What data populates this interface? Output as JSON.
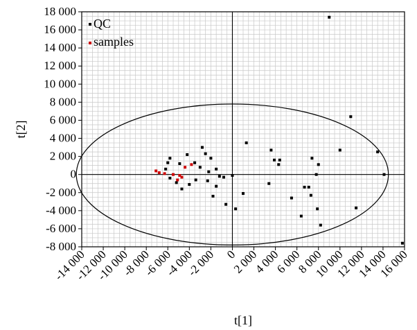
{
  "chart_data": {
    "type": "scatter",
    "title": "",
    "xlabel": "t[1]",
    "ylabel": "t[2]",
    "xlim": [
      -14000,
      16000
    ],
    "ylim": [
      -8000,
      18000
    ],
    "x_tick_values": [
      -14000,
      -12000,
      -10000,
      -8000,
      -6000,
      -4000,
      -2000,
      0,
      2000,
      4000,
      6000,
      8000,
      10000,
      12000,
      14000,
      16000
    ],
    "x_tick_labels": [
      "-14 000",
      "-12 000",
      "-10 000",
      "-8 000",
      "-6 000",
      "-4 000",
      "-2 000",
      "0",
      "2 000",
      "4 000",
      "6 000",
      "8 000",
      "10 000",
      "12 000",
      "14 000",
      "16 000"
    ],
    "y_tick_values": [
      -8000,
      -6000,
      -4000,
      -2000,
      0,
      2000,
      4000,
      6000,
      8000,
      10000,
      12000,
      14000,
      16000,
      18000
    ],
    "y_tick_labels": [
      "-8 000",
      "-6 000",
      "-4 000",
      "-2 000",
      "0",
      "2 000",
      "4 000",
      "6 000",
      "8 000",
      "10 000",
      "12 000",
      "14 000",
      "16 000",
      "18 000"
    ],
    "grid": true,
    "legend_position": "top-left",
    "ellipse": {
      "center_x": 0,
      "center_y": 0,
      "radius_x": 14500,
      "radius_y": 7800
    },
    "colors": {
      "QC": "#000000",
      "samples": "#cc0000",
      "grid": "#c8c8c8",
      "axis": "#000000",
      "background": "#ffffff"
    },
    "series": [
      {
        "name": "QC",
        "points": [
          [
            9000,
            17400
          ],
          [
            11000,
            6400
          ],
          [
            13500,
            2500
          ],
          [
            10000,
            2700
          ],
          [
            14100,
            0
          ],
          [
            11500,
            -3700
          ],
          [
            15800,
            -7600
          ],
          [
            -6000,
            1300
          ],
          [
            -5800,
            1800
          ],
          [
            -4900,
            1200
          ],
          [
            -4200,
            2200
          ],
          [
            -2800,
            3000
          ],
          [
            -2500,
            2300
          ],
          [
            -2000,
            1800
          ],
          [
            -1500,
            600
          ],
          [
            -3000,
            800
          ],
          [
            -2200,
            300
          ],
          [
            -1200,
            -200
          ],
          [
            -1500,
            -1300
          ],
          [
            -800,
            -300
          ],
          [
            0,
            -100
          ],
          [
            -600,
            -3300
          ],
          [
            -1800,
            -2400
          ],
          [
            -2300,
            -700
          ],
          [
            -3400,
            -600
          ],
          [
            -4000,
            -1100
          ],
          [
            -4700,
            -1600
          ],
          [
            -5200,
            -900
          ],
          [
            -5800,
            -400
          ],
          [
            -6200,
            600
          ],
          [
            -3500,
            1300
          ],
          [
            300,
            -3800
          ],
          [
            1000,
            -2100
          ],
          [
            1300,
            3500
          ],
          [
            3600,
            2700
          ],
          [
            3900,
            1600
          ],
          [
            4400,
            1600
          ],
          [
            4300,
            1100
          ],
          [
            3400,
            -1000
          ],
          [
            5500,
            -2600
          ],
          [
            6400,
            -4600
          ],
          [
            6700,
            -1400
          ],
          [
            7100,
            -1400
          ],
          [
            7400,
            1800
          ],
          [
            8000,
            1100
          ],
          [
            7800,
            0
          ],
          [
            7300,
            -2300
          ],
          [
            7900,
            -3800
          ],
          [
            8200,
            -5600
          ]
        ]
      },
      {
        "name": "samples",
        "points": [
          [
            -7100,
            400
          ],
          [
            -6800,
            200
          ],
          [
            -6300,
            100
          ],
          [
            -5500,
            0
          ],
          [
            -4900,
            -100
          ],
          [
            -4700,
            -300
          ],
          [
            -4400,
            800
          ],
          [
            -3800,
            1100
          ],
          [
            -5100,
            -600
          ]
        ]
      }
    ]
  }
}
